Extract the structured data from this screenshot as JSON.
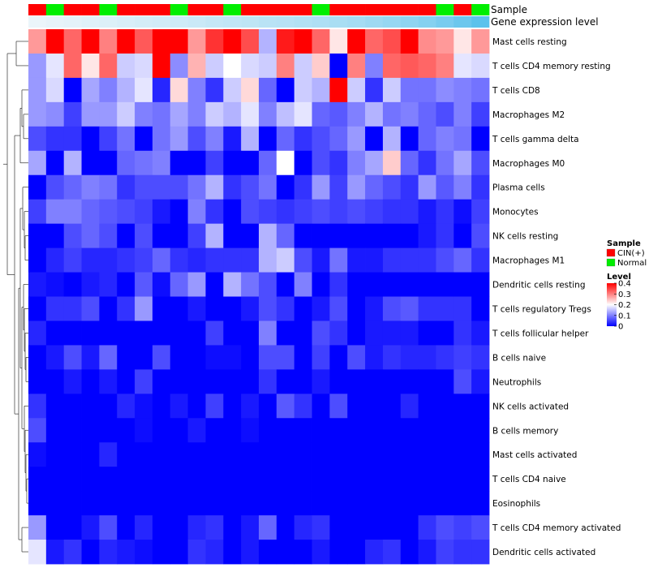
{
  "chart_data": {
    "type": "heatmap",
    "annotation_titles": [
      "Sample",
      "Gene expression level"
    ],
    "sample_groups": [
      "C",
      "N",
      "C",
      "C",
      "N",
      "C",
      "C",
      "C",
      "N",
      "C",
      "C",
      "N",
      "C",
      "C",
      "C",
      "C",
      "N",
      "C",
      "C",
      "C",
      "C",
      "C",
      "C",
      "N",
      "C",
      "N"
    ],
    "group_colors": {
      "C": "#ff0000",
      "N": "#00ee00"
    },
    "expression_level": [
      0.02,
      0.05,
      0.07,
      0.1,
      0.12,
      0.15,
      0.18,
      0.2,
      0.22,
      0.25,
      0.28,
      0.31,
      0.33,
      0.36,
      0.38,
      0.41,
      0.44,
      0.47,
      0.5,
      0.55,
      0.6,
      0.66,
      0.72,
      0.8,
      0.9,
      1.0
    ],
    "rows": [
      "Mast cells resting",
      "T cells CD4 memory resting",
      "T cells CD8",
      "Macrophages M2",
      "T cells gamma delta",
      "Macrophages M0",
      "Plasma cells",
      "Monocytes",
      "NK cells resting",
      "Macrophages M1",
      "Dendritic cells resting",
      "T cells regulatory  Tregs",
      "T cells follicular helper",
      "B cells naive",
      "Neutrophils",
      "NK cells activated",
      "B cells memory",
      "Mast cells activated",
      "T cells CD4 naive",
      "Eosinophils",
      "T cells CD4 memory activated",
      "Dendritic cells activated"
    ],
    "values": [
      [
        0.28,
        0.4,
        0.32,
        0.4,
        0.3,
        0.4,
        0.33,
        0.4,
        0.4,
        0.28,
        0.36,
        0.4,
        0.34,
        0.14,
        0.38,
        0.4,
        0.32,
        0.22,
        0.4,
        0.32,
        0.34,
        0.4,
        0.29,
        0.28,
        0.22,
        0.28
      ],
      [
        0.12,
        0.18,
        0.32,
        0.22,
        0.32,
        0.16,
        0.17,
        0.4,
        0.11,
        0.26,
        0.16,
        0.2,
        0.17,
        0.16,
        0.3,
        0.16,
        0.24,
        0.0,
        0.3,
        0.1,
        0.32,
        0.33,
        0.32,
        0.3,
        0.18,
        0.17
      ],
      [
        0.12,
        0.17,
        0.0,
        0.13,
        0.1,
        0.14,
        0.18,
        0.03,
        0.23,
        0.1,
        0.04,
        0.16,
        0.23,
        0.08,
        0.0,
        0.16,
        0.14,
        0.4,
        0.16,
        0.04,
        0.16,
        0.09,
        0.09,
        0.11,
        0.1,
        0.09
      ],
      [
        0.12,
        0.11,
        0.05,
        0.12,
        0.12,
        0.16,
        0.1,
        0.09,
        0.13,
        0.1,
        0.16,
        0.14,
        0.18,
        0.1,
        0.15,
        0.18,
        0.08,
        0.07,
        0.1,
        0.14,
        0.09,
        0.1,
        0.08,
        0.06,
        0.1,
        0.05
      ],
      [
        0.06,
        0.04,
        0.04,
        0.0,
        0.05,
        0.09,
        0.0,
        0.09,
        0.12,
        0.06,
        0.1,
        0.02,
        0.14,
        0.0,
        0.08,
        0.04,
        0.06,
        0.08,
        0.12,
        0.0,
        0.14,
        0.0,
        0.08,
        0.1,
        0.09,
        0.0
      ],
      [
        0.13,
        0.0,
        0.14,
        0.0,
        0.0,
        0.08,
        0.09,
        0.1,
        0.0,
        0.0,
        0.05,
        0.0,
        0.0,
        0.08,
        0.2,
        0.0,
        0.06,
        0.04,
        0.1,
        0.13,
        0.24,
        0.08,
        0.04,
        0.09,
        0.13,
        0.06
      ],
      [
        0.0,
        0.06,
        0.08,
        0.1,
        0.09,
        0.04,
        0.06,
        0.06,
        0.06,
        0.09,
        0.14,
        0.04,
        0.06,
        0.09,
        0.0,
        0.04,
        0.12,
        0.05,
        0.12,
        0.08,
        0.06,
        0.04,
        0.12,
        0.07,
        0.1,
        0.04
      ],
      [
        0.05,
        0.1,
        0.1,
        0.08,
        0.07,
        0.06,
        0.05,
        0.02,
        0.0,
        0.1,
        0.04,
        0.0,
        0.06,
        0.05,
        0.04,
        0.05,
        0.06,
        0.05,
        0.06,
        0.05,
        0.04,
        0.04,
        0.02,
        0.04,
        0.01,
        0.05
      ],
      [
        0.0,
        0.0,
        0.06,
        0.08,
        0.06,
        0.0,
        0.06,
        0.0,
        0.0,
        0.05,
        0.14,
        0.0,
        0.0,
        0.14,
        0.08,
        0.0,
        0.0,
        0.0,
        0.0,
        0.0,
        0.0,
        0.0,
        0.02,
        0.04,
        0.0,
        0.06
      ],
      [
        0.0,
        0.03,
        0.05,
        0.03,
        0.03,
        0.04,
        0.05,
        0.08,
        0.04,
        0.03,
        0.04,
        0.04,
        0.04,
        0.14,
        0.16,
        0.06,
        0.02,
        0.09,
        0.02,
        0.02,
        0.04,
        0.04,
        0.04,
        0.06,
        0.08,
        0.04
      ],
      [
        0.02,
        0.01,
        0.0,
        0.02,
        0.03,
        0.0,
        0.07,
        0.01,
        0.08,
        0.12,
        0.0,
        0.14,
        0.09,
        0.06,
        0.0,
        0.1,
        0.0,
        0.04,
        0.0,
        0.0,
        0.0,
        0.0,
        0.0,
        0.0,
        0.0,
        0.0
      ],
      [
        0.0,
        0.04,
        0.04,
        0.06,
        0.0,
        0.04,
        0.12,
        0.0,
        0.0,
        0.02,
        0.0,
        0.0,
        0.02,
        0.06,
        0.04,
        0.0,
        0.02,
        0.06,
        0.0,
        0.02,
        0.06,
        0.07,
        0.04,
        0.04,
        0.04,
        0.0
      ],
      [
        0.03,
        0.0,
        0.0,
        0.0,
        0.0,
        0.0,
        0.0,
        0.0,
        0.0,
        0.0,
        0.05,
        0.0,
        0.0,
        0.1,
        0.0,
        0.0,
        0.06,
        0.04,
        0.0,
        0.02,
        0.02,
        0.02,
        0.0,
        0.0,
        0.04,
        0.02
      ],
      [
        0.0,
        0.02,
        0.06,
        0.02,
        0.08,
        0.0,
        0.0,
        0.06,
        0.0,
        0.0,
        0.01,
        0.01,
        0.0,
        0.06,
        0.06,
        0.0,
        0.05,
        0.0,
        0.06,
        0.02,
        0.04,
        0.03,
        0.03,
        0.04,
        0.05,
        0.04
      ],
      [
        0.0,
        0.0,
        0.02,
        0.0,
        0.02,
        0.0,
        0.05,
        0.0,
        0.0,
        0.0,
        0.0,
        0.0,
        0.0,
        0.04,
        0.0,
        0.0,
        0.02,
        0.0,
        0.0,
        0.0,
        0.0,
        0.0,
        0.0,
        0.0,
        0.06,
        0.02
      ],
      [
        0.04,
        0.0,
        0.0,
        0.0,
        0.0,
        0.03,
        0.01,
        0.0,
        0.02,
        0.0,
        0.05,
        0.0,
        0.02,
        0.0,
        0.07,
        0.04,
        0.0,
        0.06,
        0.0,
        0.0,
        0.0,
        0.03,
        0.0,
        0.0,
        0.0,
        0.0
      ],
      [
        0.06,
        0.0,
        0.0,
        0.0,
        0.0,
        0.0,
        0.01,
        0.0,
        0.0,
        0.02,
        0.0,
        0.0,
        0.01,
        0.0,
        0.0,
        0.0,
        0.0,
        0.0,
        0.0,
        0.0,
        0.0,
        0.0,
        0.0,
        0.0,
        0.0,
        0.0
      ],
      [
        0.01,
        0.0,
        0.0,
        0.0,
        0.03,
        0.0,
        0.0,
        0.0,
        0.0,
        0.0,
        0.0,
        0.0,
        0.0,
        0.0,
        0.0,
        0.0,
        0.0,
        0.0,
        0.0,
        0.0,
        0.0,
        0.0,
        0.0,
        0.0,
        0.0,
        0.0
      ],
      [
        0.0,
        0.0,
        0.0,
        0.0,
        0.0,
        0.0,
        0.0,
        0.0,
        0.0,
        0.0,
        0.0,
        0.0,
        0.0,
        0.0,
        0.0,
        0.0,
        0.0,
        0.0,
        0.0,
        0.0,
        0.0,
        0.0,
        0.0,
        0.0,
        0.0,
        0.0
      ],
      [
        0.0,
        0.0,
        0.0,
        0.0,
        0.0,
        0.0,
        0.0,
        0.0,
        0.0,
        0.0,
        0.0,
        0.0,
        0.0,
        0.0,
        0.0,
        0.0,
        0.0,
        0.0,
        0.0,
        0.0,
        0.0,
        0.0,
        0.0,
        0.0,
        0.0,
        0.0
      ],
      [
        0.12,
        0.0,
        0.0,
        0.02,
        0.06,
        0.0,
        0.03,
        0.0,
        0.0,
        0.03,
        0.04,
        0.0,
        0.02,
        0.08,
        0.0,
        0.03,
        0.04,
        0.0,
        0.0,
        0.0,
        0.0,
        0.0,
        0.04,
        0.06,
        0.05,
        0.06
      ],
      [
        0.18,
        0.02,
        0.04,
        0.0,
        0.03,
        0.02,
        0.01,
        0.0,
        0.0,
        0.04,
        0.03,
        0.0,
        0.02,
        0.0,
        0.0,
        0.0,
        0.02,
        0.0,
        0.0,
        0.03,
        0.04,
        0.0,
        0.02,
        0.05,
        0.04,
        0.04
      ]
    ],
    "color_scale": {
      "min": 0,
      "max": 0.4,
      "low": "#0000ff",
      "mid": "#ffffff",
      "high": "#ff0000",
      "mid_value": 0.2
    },
    "legend": {
      "sample_title": "Sample",
      "sample_entries": [
        {
          "label": "CIN(+)",
          "color": "#ff0000"
        },
        {
          "label": "Normal",
          "color": "#00ee00"
        }
      ],
      "level_title": "Level",
      "level_ticks": [
        {
          "value": 0.4,
          "label": "0.4"
        },
        {
          "value": 0.3,
          "label": "0.3"
        },
        {
          "value": 0.2,
          "label": "0.2"
        },
        {
          "value": 0.1,
          "label": "0.1"
        },
        {
          "value": 0.0,
          "label": "0"
        }
      ],
      "position": "right"
    }
  }
}
